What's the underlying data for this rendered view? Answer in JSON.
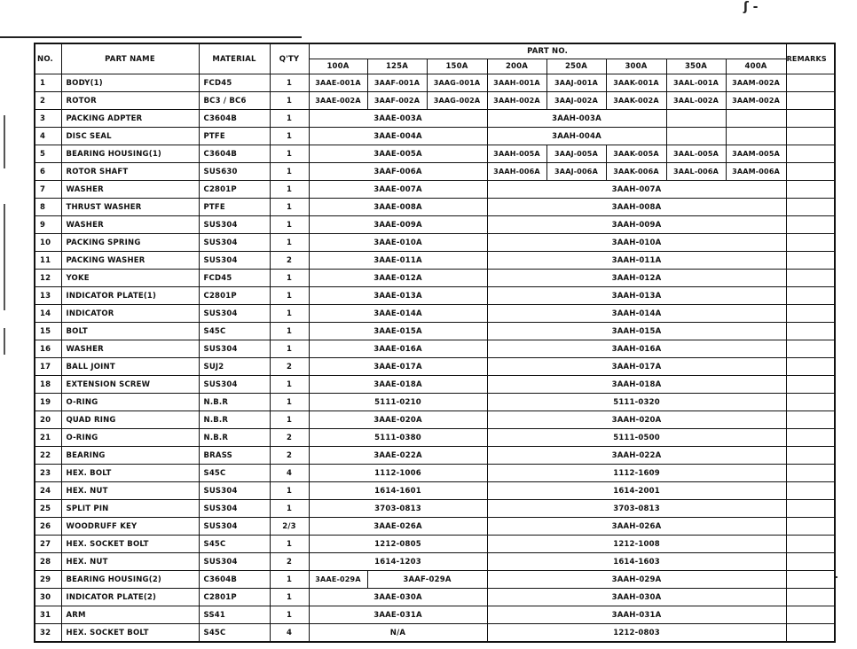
{
  "handwritten_mark": "ʃ -",
  "header": {
    "no": "NO.",
    "part_name": "PART  NAME",
    "material": "MATERIAL",
    "qty": "Q'TY",
    "part_no": "PART  NO.",
    "remarks": "REMARKS",
    "sizes": [
      "100A",
      "125A",
      "150A",
      "200A",
      "250A",
      "300A",
      "350A",
      "400A"
    ]
  },
  "rows": [
    {
      "no": "1",
      "name": "BODY(1)",
      "material": "FCD45",
      "qty": "1",
      "parts": [
        {
          "t": "3AAE-001A",
          "s": 1
        },
        {
          "t": "3AAF-001A",
          "s": 1
        },
        {
          "t": "3AAG-001A",
          "s": 1
        },
        {
          "t": "3AAH-001A",
          "s": 1
        },
        {
          "t": "3AAJ-001A",
          "s": 1
        },
        {
          "t": "3AAK-001A",
          "s": 1
        },
        {
          "t": "3AAL-001A",
          "s": 1
        },
        {
          "t": "3AAM-002A",
          "s": 1
        }
      ]
    },
    {
      "no": "2",
      "name": "ROTOR",
      "material": "BC3 / BC6",
      "qty": "1",
      "parts": [
        {
          "t": "3AAE-002A",
          "s": 1
        },
        {
          "t": "3AAF-002A",
          "s": 1
        },
        {
          "t": "3AAG-002A",
          "s": 1
        },
        {
          "t": "3AAH-002A",
          "s": 1
        },
        {
          "t": "3AAJ-002A",
          "s": 1
        },
        {
          "t": "3AAK-002A",
          "s": 1
        },
        {
          "t": "3AAL-002A",
          "s": 1
        },
        {
          "t": "3AAM-002A",
          "s": 1
        }
      ]
    },
    {
      "no": "3",
      "name": "PACKING ADPTER",
      "material": "C3604B",
      "qty": "1",
      "parts": [
        {
          "t": "3AAE-003A",
          "s": 3
        },
        {
          "t": "3AAH-003A",
          "s": 3
        },
        {
          "t": "",
          "s": 1
        },
        {
          "t": "",
          "s": 1
        }
      ]
    },
    {
      "no": "4",
      "name": "DISC SEAL",
      "material": "PTFE",
      "qty": "1",
      "parts": [
        {
          "t": "3AAE-004A",
          "s": 3
        },
        {
          "t": "3AAH-004A",
          "s": 3
        },
        {
          "t": "",
          "s": 1
        },
        {
          "t": "",
          "s": 1
        }
      ]
    },
    {
      "no": "5",
      "name": "BEARING HOUSING(1)",
      "material": "C3604B",
      "qty": "1",
      "parts": [
        {
          "t": "3AAE-005A",
          "s": 3
        },
        {
          "t": "3AAH-005A",
          "s": 1
        },
        {
          "t": "3AAJ-005A",
          "s": 1
        },
        {
          "t": "3AAK-005A",
          "s": 1
        },
        {
          "t": "3AAL-005A",
          "s": 1
        },
        {
          "t": "3AAM-005A",
          "s": 1
        }
      ]
    },
    {
      "no": "6",
      "name": "ROTOR SHAFT",
      "material": "SUS630",
      "qty": "1",
      "parts": [
        {
          "t": "3AAF-006A",
          "s": 3
        },
        {
          "t": "3AAH-006A",
          "s": 1
        },
        {
          "t": "3AAJ-006A",
          "s": 1
        },
        {
          "t": "3AAK-006A",
          "s": 1
        },
        {
          "t": "3AAL-006A",
          "s": 1
        },
        {
          "t": "3AAM-006A",
          "s": 1
        }
      ]
    },
    {
      "no": "7",
      "name": "WASHER",
      "material": "C2801P",
      "qty": "1",
      "parts": [
        {
          "t": "3AAE-007A",
          "s": 3
        },
        {
          "t": "3AAH-007A",
          "s": 5
        }
      ]
    },
    {
      "no": "8",
      "name": "THRUST WASHER",
      "material": "PTFE",
      "qty": "1",
      "parts": [
        {
          "t": "3AAE-008A",
          "s": 3
        },
        {
          "t": "3AAH-008A",
          "s": 5
        }
      ]
    },
    {
      "no": "9",
      "name": "WASHER",
      "material": "SUS304",
      "qty": "1",
      "parts": [
        {
          "t": "3AAE-009A",
          "s": 3
        },
        {
          "t": "3AAH-009A",
          "s": 5
        }
      ]
    },
    {
      "no": "10",
      "name": "PACKING SPRING",
      "material": "SUS304",
      "qty": "1",
      "parts": [
        {
          "t": "3AAE-010A",
          "s": 3
        },
        {
          "t": "3AAH-010A",
          "s": 5
        }
      ]
    },
    {
      "no": "11",
      "name": "PACKING WASHER",
      "material": "SUS304",
      "qty": "2",
      "parts": [
        {
          "t": "3AAE-011A",
          "s": 3
        },
        {
          "t": "3AAH-011A",
          "s": 5
        }
      ]
    },
    {
      "no": "12",
      "name": "YOKE",
      "material": "FCD45",
      "qty": "1",
      "parts": [
        {
          "t": "3AAE-012A",
          "s": 3
        },
        {
          "t": "3AAH-012A",
          "s": 5
        }
      ]
    },
    {
      "no": "13",
      "name": "INDICATOR PLATE(1)",
      "material": "C2801P",
      "qty": "1",
      "parts": [
        {
          "t": "3AAE-013A",
          "s": 3
        },
        {
          "t": "3AAH-013A",
          "s": 5
        }
      ]
    },
    {
      "no": "14",
      "name": "INDICATOR",
      "material": "SUS304",
      "qty": "1",
      "parts": [
        {
          "t": "3AAE-014A",
          "s": 3
        },
        {
          "t": "3AAH-014A",
          "s": 5
        }
      ]
    },
    {
      "no": "15",
      "name": "BOLT",
      "material": "S45C",
      "qty": "1",
      "parts": [
        {
          "t": "3AAE-015A",
          "s": 3
        },
        {
          "t": "3AAH-015A",
          "s": 5
        }
      ]
    },
    {
      "no": "16",
      "name": "WASHER",
      "material": "SUS304",
      "qty": "1",
      "parts": [
        {
          "t": "3AAE-016A",
          "s": 3
        },
        {
          "t": "3AAH-016A",
          "s": 5
        }
      ]
    },
    {
      "no": "17",
      "name": "BALL JOINT",
      "material": "SUJ2",
      "qty": "2",
      "parts": [
        {
          "t": "3AAE-017A",
          "s": 3
        },
        {
          "t": "3AAH-017A",
          "s": 5
        }
      ]
    },
    {
      "no": "18",
      "name": "EXTENSION SCREW",
      "material": "SUS304",
      "qty": "1",
      "parts": [
        {
          "t": "3AAE-018A",
          "s": 3
        },
        {
          "t": "3AAH-018A",
          "s": 5
        }
      ]
    },
    {
      "no": "19",
      "name": "O-RING",
      "material": "N.B.R",
      "qty": "1",
      "parts": [
        {
          "t": "5111-0210",
          "s": 3
        },
        {
          "t": "5111-0320",
          "s": 5
        }
      ]
    },
    {
      "no": "20",
      "name": "QUAD RING",
      "material": "N.B.R",
      "qty": "1",
      "parts": [
        {
          "t": "3AAE-020A",
          "s": 3
        },
        {
          "t": "3AAH-020A",
          "s": 5
        }
      ]
    },
    {
      "no": "21",
      "name": "O-RING",
      "material": "N.B.R",
      "qty": "2",
      "parts": [
        {
          "t": "5111-0380",
          "s": 3
        },
        {
          "t": "5111-0500",
          "s": 5
        }
      ]
    },
    {
      "no": "22",
      "name": "BEARING",
      "material": "BRASS",
      "qty": "2",
      "parts": [
        {
          "t": "3AAE-022A",
          "s": 3
        },
        {
          "t": "3AAH-022A",
          "s": 5
        }
      ]
    },
    {
      "no": "23",
      "name": "HEX. BOLT",
      "material": "S45C",
      "qty": "4",
      "parts": [
        {
          "t": "1112-1006",
          "s": 3
        },
        {
          "t": "1112-1609",
          "s": 5
        }
      ]
    },
    {
      "no": "24",
      "name": "HEX. NUT",
      "material": "SUS304",
      "qty": "1",
      "parts": [
        {
          "t": "1614-1601",
          "s": 3
        },
        {
          "t": "1614-2001",
          "s": 5
        }
      ]
    },
    {
      "no": "25",
      "name": "SPLIT PIN",
      "material": "SUS304",
      "qty": "1",
      "parts": [
        {
          "t": "3703-0813",
          "s": 3
        },
        {
          "t": "3703-0813",
          "s": 5
        }
      ]
    },
    {
      "no": "26",
      "name": "WOODRUFF KEY",
      "material": "SUS304",
      "qty": "2/3",
      "parts": [
        {
          "t": "3AAE-026A",
          "s": 3
        },
        {
          "t": "3AAH-026A",
          "s": 5
        }
      ]
    },
    {
      "no": "27",
      "name": "HEX. SOCKET BOLT",
      "material": "S45C",
      "qty": "1",
      "parts": [
        {
          "t": "1212-0805",
          "s": 3
        },
        {
          "t": "1212-1008",
          "s": 5
        }
      ]
    },
    {
      "no": "28",
      "name": "HEX. NUT",
      "material": "SUS304",
      "qty": "2",
      "parts": [
        {
          "t": "1614-1203",
          "s": 3
        },
        {
          "t": "1614-1603",
          "s": 5
        }
      ]
    },
    {
      "no": "29",
      "name": "BEARING HOUSING(2)",
      "material": "C3604B",
      "qty": "1",
      "parts": [
        {
          "t": "3AAE-029A",
          "s": 1
        },
        {
          "t": "3AAF-029A",
          "s": 2
        },
        {
          "t": "3AAH-029A",
          "s": 5
        }
      ]
    },
    {
      "no": "30",
      "name": "INDICATOR PLATE(2)",
      "material": "C2801P",
      "qty": "1",
      "parts": [
        {
          "t": "3AAE-030A",
          "s": 3
        },
        {
          "t": "3AAH-030A",
          "s": 5
        }
      ]
    },
    {
      "no": "31",
      "name": "ARM",
      "material": "SS41",
      "qty": "1",
      "parts": [
        {
          "t": "3AAE-031A",
          "s": 3
        },
        {
          "t": "3AAH-031A",
          "s": 5
        }
      ]
    },
    {
      "no": "32",
      "name": "HEX. SOCKET BOLT",
      "material": "S45C",
      "qty": "4",
      "parts": [
        {
          "t": "N/A",
          "s": 3
        },
        {
          "t": "1212-0803",
          "s": 5
        }
      ]
    }
  ]
}
